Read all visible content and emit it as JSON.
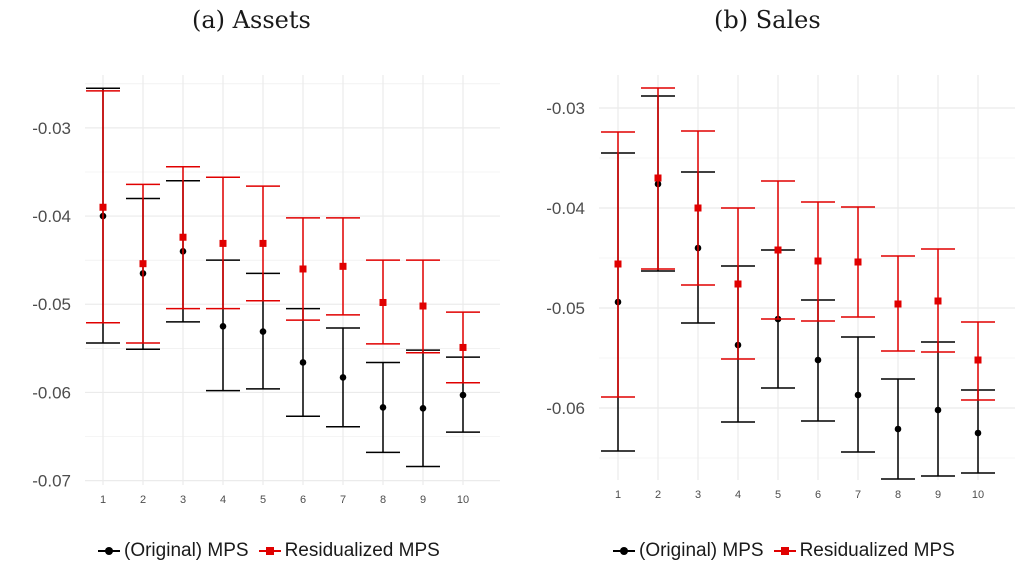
{
  "colors": {
    "original": "#000000",
    "residualized": "#e00000",
    "grid": "#ebebeb",
    "tick": "#4d4d4d"
  },
  "legend": {
    "original_label": "(Original) MPS",
    "residualized_label": "Residualized MPS"
  },
  "chart_data": [
    {
      "type": "scatter",
      "title": "(a) Assets",
      "xlabel": "",
      "ylabel": "",
      "categories": [
        "1",
        "2",
        "3",
        "4",
        "5",
        "6",
        "7",
        "8",
        "9",
        "10"
      ],
      "yticks": [
        -0.03,
        -0.04,
        -0.05,
        -0.06,
        -0.07
      ],
      "ytick_labels": [
        "-0.03",
        "-0.04",
        "-0.05",
        "-0.06",
        "-0.07"
      ],
      "ylim": [
        -0.0705,
        -0.024
      ],
      "series": [
        {
          "name": "(Original) MPS",
          "marker": "circle",
          "values": [
            -0.04,
            -0.0465,
            -0.044,
            -0.0525,
            -0.0531,
            -0.0566,
            -0.0583,
            -0.0617,
            -0.0618,
            -0.0603
          ],
          "lower": [
            -0.0544,
            -0.0551,
            -0.052,
            -0.0598,
            -0.0596,
            -0.0627,
            -0.0639,
            -0.0668,
            -0.0684,
            -0.0645
          ],
          "upper": [
            -0.0255,
            -0.038,
            -0.036,
            -0.045,
            -0.0465,
            -0.0505,
            -0.0527,
            -0.0566,
            -0.0552,
            -0.056
          ]
        },
        {
          "name": "Residualized MPS",
          "marker": "square",
          "values": [
            -0.039,
            -0.0454,
            -0.0424,
            -0.0431,
            -0.0431,
            -0.046,
            -0.0457,
            -0.0498,
            -0.0502,
            -0.0549
          ],
          "lower": [
            -0.0521,
            -0.0544,
            -0.0505,
            -0.0505,
            -0.0496,
            -0.0518,
            -0.0512,
            -0.0545,
            -0.0555,
            -0.0589
          ],
          "upper": [
            -0.0258,
            -0.0364,
            -0.0344,
            -0.0356,
            -0.0366,
            -0.0402,
            -0.0402,
            -0.045,
            -0.045,
            -0.0509
          ]
        }
      ]
    },
    {
      "type": "scatter",
      "title": "(b) Sales",
      "xlabel": "",
      "ylabel": "",
      "categories": [
        "1",
        "2",
        "3",
        "4",
        "5",
        "6",
        "7",
        "8",
        "9",
        "10"
      ],
      "yticks": [
        -0.03,
        -0.04,
        -0.05,
        -0.06
      ],
      "ytick_labels": [
        "-0.03",
        "-0.04",
        "-0.05",
        "-0.06"
      ],
      "ylim": [
        -0.0672,
        -0.0267
      ],
      "series": [
        {
          "name": "(Original) MPS",
          "marker": "circle",
          "values": [
            -0.0494,
            -0.0376,
            -0.044,
            -0.0537,
            -0.0511,
            -0.0552,
            -0.0587,
            -0.0621,
            -0.0602,
            -0.0625
          ],
          "lower": [
            -0.0643,
            -0.0463,
            -0.0515,
            -0.0614,
            -0.058,
            -0.0613,
            -0.0644,
            -0.0671,
            -0.0668,
            -0.0665
          ],
          "upper": [
            -0.0345,
            -0.0288,
            -0.0364,
            -0.0458,
            -0.0442,
            -0.0492,
            -0.0529,
            -0.0571,
            -0.0534,
            -0.0582
          ]
        },
        {
          "name": "Residualized MPS",
          "marker": "square",
          "values": [
            -0.0456,
            -0.037,
            -0.04,
            -0.0476,
            -0.0442,
            -0.0453,
            -0.0454,
            -0.0496,
            -0.0493,
            -0.0552
          ],
          "lower": [
            -0.0589,
            -0.0461,
            -0.0477,
            -0.0551,
            -0.0511,
            -0.0513,
            -0.0509,
            -0.0543,
            -0.0544,
            -0.0592
          ],
          "upper": [
            -0.0324,
            -0.028,
            -0.0323,
            -0.04,
            -0.0373,
            -0.0394,
            -0.0399,
            -0.0448,
            -0.0441,
            -0.0514
          ]
        }
      ]
    }
  ]
}
